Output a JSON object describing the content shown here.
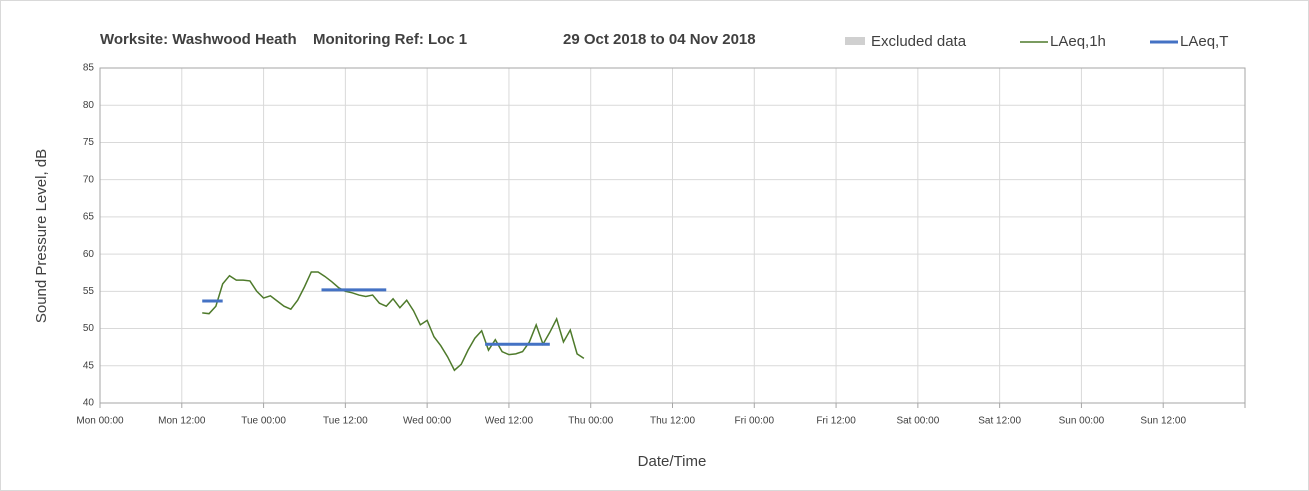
{
  "chart_data": {
    "type": "line",
    "title_parts": [
      "Worksite: Washwood Heath",
      "Monitoring Ref: Loc 1",
      "29 Oct 2018 to 04 Nov 2018"
    ],
    "y_label": "Sound Pressure Level, dB",
    "x_label": "Date/Time",
    "xlim": [
      0,
      168
    ],
    "xticks": [
      {
        "value": 0,
        "label": "Mon 00:00"
      },
      {
        "value": 12,
        "label": "Mon 12:00"
      },
      {
        "value": 24,
        "label": "Tue 00:00"
      },
      {
        "value": 36,
        "label": "Tue 12:00"
      },
      {
        "value": 48,
        "label": "Wed 00:00"
      },
      {
        "value": 60,
        "label": "Wed 12:00"
      },
      {
        "value": 72,
        "label": "Thu 00:00"
      },
      {
        "value": 84,
        "label": "Thu 12:00"
      },
      {
        "value": 96,
        "label": "Fri 00:00"
      },
      {
        "value": 108,
        "label": "Fri 12:00"
      },
      {
        "value": 120,
        "label": "Sat 00:00"
      },
      {
        "value": 132,
        "label": "Sat 12:00"
      },
      {
        "value": 144,
        "label": "Sun 00:00"
      },
      {
        "value": 156,
        "label": "Sun 12:00"
      }
    ],
    "ylim": [
      40,
      85
    ],
    "yticks": [
      40,
      45,
      50,
      55,
      60,
      65,
      70,
      75,
      80,
      85
    ],
    "grid": true,
    "series": [
      {
        "name": "Excluded data",
        "color": "#d0d0d0",
        "x": [],
        "values": []
      },
      {
        "name": "LAeq,1h",
        "color": "#4e7a2b",
        "x": [
          15,
          16,
          17,
          18,
          19,
          20,
          21,
          22,
          23,
          24,
          25,
          26,
          27,
          28,
          29,
          30,
          31,
          32,
          33,
          34,
          35,
          36,
          37,
          38,
          39,
          40,
          41,
          42,
          43,
          44,
          45,
          46,
          47,
          48,
          49,
          50,
          51,
          52,
          53,
          54,
          55,
          56,
          57,
          58,
          59,
          60,
          61,
          62,
          63,
          64,
          65,
          66,
          67,
          68,
          69,
          70,
          71
        ],
        "values": [
          52.1,
          52,
          53,
          56,
          57.1,
          56.5,
          56.5,
          56.4,
          55,
          54.1,
          54.4,
          53.7,
          53,
          52.6,
          53.8,
          55.6,
          57.6,
          57.6,
          57,
          56.3,
          55.5,
          55,
          54.8,
          54.5,
          54.3,
          54.5,
          53.4,
          53,
          54,
          52.8,
          53.8,
          52.4,
          50.5,
          51.1,
          48.9,
          47.7,
          46.2,
          44.4,
          45.2,
          47.1,
          48.7,
          49.7,
          47.1,
          48.5,
          46.9,
          46.5,
          46.6,
          46.9,
          48.2,
          50.5,
          47.9,
          49.5,
          51.3,
          48.2,
          49.8,
          46.6,
          46
        ]
      },
      {
        "name": "LAeq,T",
        "color": "#4472c4",
        "x": [
          15,
          18,
          null,
          32.5,
          42,
          null,
          56.5,
          66
        ],
        "values": [
          53.7,
          53.7,
          null,
          55.2,
          55.2,
          null,
          47.9,
          47.9
        ]
      }
    ]
  }
}
